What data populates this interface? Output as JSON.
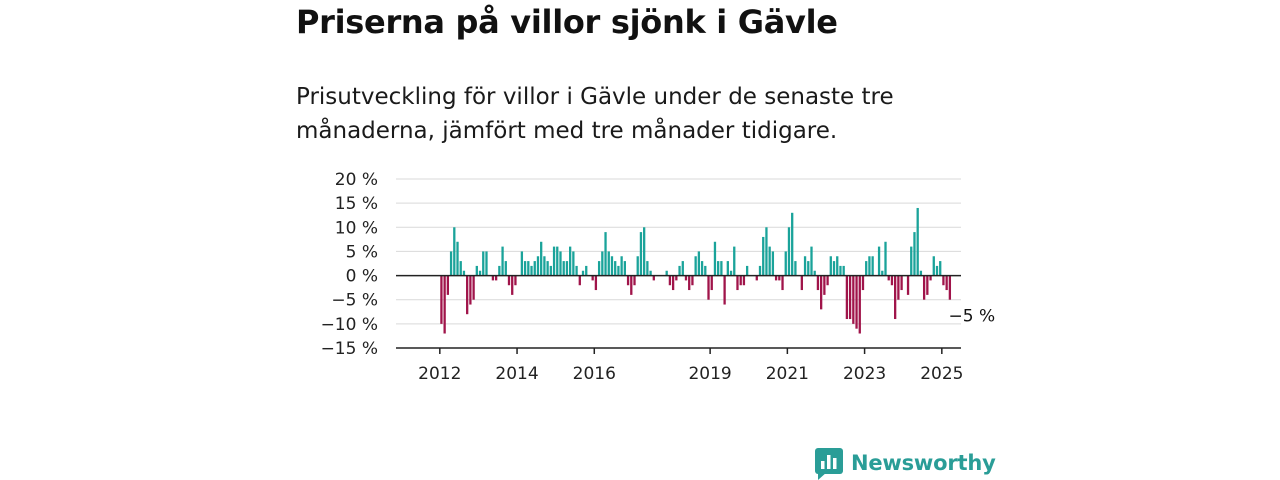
{
  "title": "Priserna på villor sjönk i Gävle",
  "subtitle": "Prisutveckling för villor i Gävle under de senaste tre månaderna, jämfört med tre månader tidigare.",
  "brand": {
    "name": "Newsworthy",
    "icon": "newsworthy-logo-icon"
  },
  "colors": {
    "positive": "#1aa39a",
    "negative": "#a0144a",
    "grid": "#d9d9d9",
    "axis": "#222222"
  },
  "chart_data": {
    "type": "bar",
    "title": "Priserna på villor sjönk i Gävle",
    "xlabel": "",
    "ylabel": "",
    "ylim": [
      -15,
      20
    ],
    "yticks": [
      20,
      15,
      10,
      5,
      0,
      -5,
      -10,
      -15
    ],
    "ytick_labels": [
      "20 %",
      "15 %",
      "10 %",
      "5 %",
      "0 %",
      "−5 %",
      "−10 %",
      "−15 %"
    ],
    "x_tick_labels": [
      {
        "label": "2012",
        "index": 6
      },
      {
        "label": "2014",
        "index": 30
      },
      {
        "label": "2016",
        "index": 54
      },
      {
        "label": "2019",
        "index": 90
      },
      {
        "label": "2021",
        "index": 114
      },
      {
        "label": "2023",
        "index": 138
      },
      {
        "label": "2025",
        "index": 162
      }
    ],
    "grid": true,
    "start": "2011-07",
    "end": "2025-04",
    "values": [
      0,
      0,
      0,
      0,
      0,
      0,
      0,
      -10,
      -12,
      -4,
      5,
      10,
      7,
      3,
      1,
      -8,
      -6,
      -5,
      2,
      1,
      5,
      5,
      0,
      -1,
      -1,
      2,
      6,
      3,
      -2,
      -4,
      -2,
      0,
      5,
      3,
      3,
      2,
      3,
      4,
      7,
      4,
      3,
      2,
      6,
      6,
      5,
      3,
      3,
      6,
      5,
      2,
      -2,
      1,
      2,
      0,
      -1,
      -3,
      3,
      5,
      9,
      5,
      4,
      3,
      2,
      4,
      3,
      -2,
      -4,
      -2,
      4,
      9,
      10,
      3,
      1,
      -1,
      0,
      0,
      0,
      1,
      -2,
      -3,
      -1,
      2,
      3,
      -1,
      -3,
      -2,
      4,
      5,
      3,
      2,
      -5,
      -3,
      7,
      3,
      3,
      -6,
      3,
      1,
      6,
      -3,
      -2,
      -2,
      2,
      0,
      0,
      -1,
      2,
      8,
      10,
      6,
      5,
      -1,
      -1,
      -3,
      5,
      10,
      13,
      3,
      0,
      -3,
      4,
      3,
      6,
      1,
      -3,
      -7,
      -4,
      -2,
      4,
      3,
      4,
      2,
      2,
      -9,
      -9,
      -10,
      -11,
      -12,
      -3,
      3,
      4,
      4,
      0,
      6,
      1,
      7,
      -1,
      -2,
      -9,
      -5,
      -3,
      0,
      -4,
      6,
      9,
      14,
      1,
      -5,
      -4,
      -1,
      4,
      2,
      3,
      -2,
      -3,
      -5
    ],
    "annotations": [
      {
        "text": "−5 %",
        "index": 165
      }
    ]
  }
}
